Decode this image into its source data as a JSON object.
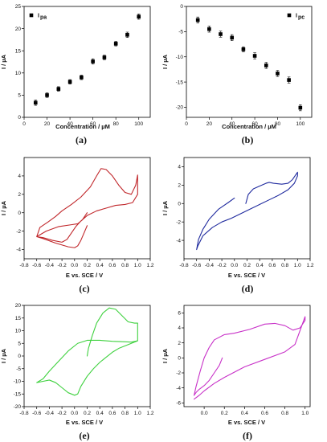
{
  "chart_data": [
    {
      "type": "scatter",
      "panel_label": "(a)",
      "xlabel": "Concentration / µM",
      "ylabel": "I / µA",
      "xlim": [
        0,
        110
      ],
      "ylim": [
        0,
        25
      ],
      "xticks": [
        "0",
        "20",
        "40",
        "60",
        "80",
        "100"
      ],
      "yticks": [
        "0",
        "5",
        "10",
        "15",
        "20",
        "25"
      ],
      "legend": {
        "label": "I",
        "subscript": "pa",
        "position": "top-left"
      },
      "color": "#000000",
      "x": [
        10,
        20,
        30,
        40,
        50,
        60,
        70,
        80,
        90,
        100
      ],
      "y": [
        3.3,
        5.0,
        6.4,
        8.0,
        9.0,
        12.6,
        13.5,
        16.6,
        18.6,
        22.7
      ],
      "err": [
        0.6,
        0.5,
        0.5,
        0.5,
        0.5,
        0.6,
        0.5,
        0.5,
        0.6,
        0.6
      ]
    },
    {
      "type": "scatter",
      "panel_label": "(b)",
      "xlabel": "Concentration / µM",
      "ylabel": "I / µA",
      "xlim": [
        0,
        110
      ],
      "ylim": [
        -22,
        0
      ],
      "xticks": [
        "0",
        "20",
        "40",
        "60",
        "80",
        "100"
      ],
      "yticks": [
        "0",
        "-5",
        "-10",
        "-15",
        "-20"
      ],
      "legend": {
        "label": "I",
        "subscript": "pc",
        "position": "top-right"
      },
      "color": "#000000",
      "x": [
        10,
        20,
        30,
        40,
        50,
        60,
        70,
        80,
        90,
        100
      ],
      "y": [
        -2.7,
        -4.5,
        -5.5,
        -6.2,
        -8.5,
        -9.8,
        -11.7,
        -13.3,
        -14.6,
        -20.1
      ],
      "err": [
        0.6,
        0.6,
        0.6,
        0.6,
        0.5,
        0.6,
        0.6,
        0.6,
        0.6,
        0.6
      ]
    },
    {
      "type": "line",
      "panel_label": "(c)",
      "xlabel": "E vs. SCE / V",
      "ylabel": "I / µA",
      "xlim": [
        -0.8,
        1.2
      ],
      "ylim": [
        -5,
        6
      ],
      "xticks": [
        "-0.8",
        "-0.6",
        "-0.4",
        "-0.2",
        "0.0",
        "0.2",
        "0.4",
        "0.6",
        "0.8",
        "1.0",
        "1.2"
      ],
      "yticks": [
        "-4",
        "-2",
        "0",
        "2",
        "4"
      ],
      "color": "#c0262a",
      "x": [
        0.2,
        0.12,
        0.05,
        -0.05,
        -0.25,
        -0.45,
        -0.6,
        -0.55,
        -0.42,
        -0.3,
        -0.2,
        -0.05,
        0.1,
        0.25,
        0.35,
        0.42,
        0.5,
        0.6,
        0.7,
        0.8,
        0.9,
        0.97,
        1.0,
        1.0,
        0.92,
        0.8,
        0.65,
        0.5,
        0.35,
        0.2,
        0.1,
        0.02,
        -0.05,
        -0.12,
        -0.2,
        -0.35,
        -0.5,
        -0.6,
        -0.5,
        -0.3,
        -0.1,
        0.0,
        0.05,
        0.1,
        0.15,
        0.2
      ],
      "y": [
        0.0,
        -0.8,
        -1.2,
        -1.3,
        -1.5,
        -2.0,
        -2.6,
        -1.6,
        -1.0,
        -0.4,
        0.2,
        0.9,
        1.7,
        2.8,
        4.0,
        4.8,
        4.7,
        4.0,
        3.0,
        2.2,
        2.0,
        3.0,
        4.1,
        2.0,
        1.1,
        0.9,
        0.8,
        0.5,
        0.2,
        -0.3,
        -0.9,
        -1.5,
        -2.2,
        -2.9,
        -3.2,
        -3.0,
        -2.7,
        -2.6,
        -2.8,
        -3.3,
        -3.7,
        -3.8,
        -3.6,
        -3.0,
        -2.2,
        -1.4
      ]
    },
    {
      "type": "line",
      "panel_label": "(d)",
      "xlabel": "E vs. SCE / V",
      "ylabel": "I / µA",
      "xlim": [
        -0.8,
        1.2
      ],
      "ylim": [
        -6,
        5
      ],
      "xticks": [
        "-0.8",
        "-0.6",
        "-0.4",
        "-0.2",
        "0.0",
        "0.2",
        "0.4",
        "0.6",
        "0.8",
        "1.0",
        "1.2"
      ],
      "yticks": [
        "-4",
        "-2",
        "0",
        "2",
        "4"
      ],
      "color": "#1f2a9e",
      "x": [
        0.0,
        -0.1,
        -0.25,
        -0.4,
        -0.5,
        -0.57,
        -0.6,
        -0.58,
        -0.5,
        -0.35,
        -0.2,
        -0.05,
        0.1,
        0.25,
        0.4,
        0.55,
        0.7,
        0.85,
        0.95,
        1.0,
        1.0,
        0.92,
        0.85,
        0.75,
        0.62,
        0.55,
        0.5,
        0.4,
        0.3,
        0.22,
        0.18
      ],
      "y": [
        0.6,
        0.1,
        -0.6,
        -1.7,
        -2.8,
        -3.9,
        -5.0,
        -4.6,
        -3.5,
        -2.6,
        -2.0,
        -1.6,
        -1.1,
        -0.6,
        -0.1,
        0.4,
        0.9,
        1.5,
        2.2,
        3.0,
        3.4,
        2.6,
        2.2,
        2.1,
        2.2,
        2.3,
        2.2,
        1.9,
        1.6,
        1.0,
        0.0
      ]
    },
    {
      "type": "line",
      "panel_label": "(e)",
      "xlabel": "E vs. SCE / V",
      "ylabel": "I / µA",
      "xlim": [
        -0.8,
        1.2
      ],
      "ylim": [
        -20,
        20
      ],
      "xticks": [
        "-0.8",
        "-0.6",
        "-0.4",
        "-0.2",
        "0.0",
        "0.2",
        "0.4",
        "0.6",
        "0.8",
        "1.0",
        "1.2"
      ],
      "yticks": [
        "-20",
        "-15",
        "-10",
        "-5",
        "0",
        "5",
        "10",
        "15",
        "20"
      ],
      "color": "#3fd13f",
      "x": [
        0.2,
        0.22,
        0.28,
        0.35,
        0.45,
        0.55,
        0.65,
        0.75,
        0.85,
        0.95,
        1.0,
        1.0,
        0.9,
        0.8,
        0.6,
        0.4,
        0.2,
        0.05,
        -0.1,
        -0.25,
        -0.4,
        -0.5,
        -0.6,
        -0.5,
        -0.4,
        -0.3,
        -0.2,
        -0.1,
        0.0,
        0.05,
        0.1,
        0.2,
        0.3,
        0.4,
        0.5,
        0.6,
        0.7,
        0.8,
        0.9,
        1.0
      ],
      "y": [
        0.0,
        3.0,
        8.0,
        13.0,
        17.0,
        19.0,
        18.5,
        16.0,
        13.5,
        13.0,
        13.0,
        6.0,
        5.5,
        5.6,
        5.8,
        6.2,
        6.2,
        5.0,
        2.0,
        -2.0,
        -6.0,
        -9.0,
        -10.5,
        -10.0,
        -9.5,
        -10.5,
        -12.5,
        -14.5,
        -15.5,
        -15.0,
        -12.0,
        -8.0,
        -5.0,
        -2.5,
        -0.5,
        1.5,
        3.0,
        4.0,
        5.0,
        6.0
      ]
    },
    {
      "type": "line",
      "panel_label": "(f)",
      "xlabel": "E vs. SCE / V",
      "ylabel": "I / µA",
      "xlim": [
        -0.2,
        1.05
      ],
      "ylim": [
        -6.5,
        7
      ],
      "xticks": [
        "0.0",
        "0.2",
        "0.4",
        "0.6",
        "0.8",
        "1.0"
      ],
      "yticks": [
        "-6",
        "-4",
        "-2",
        "0",
        "2",
        "4",
        "6"
      ],
      "color": "#c832c8",
      "x": [
        0.18,
        0.15,
        0.1,
        0.05,
        0.0,
        -0.05,
        -0.08,
        -0.1,
        -0.08,
        -0.04,
        0.0,
        0.05,
        0.1,
        0.2,
        0.3,
        0.45,
        0.6,
        0.7,
        0.8,
        0.88,
        0.95,
        1.0,
        1.0,
        0.9,
        0.8,
        0.6,
        0.4,
        0.2,
        0.1,
        0.0,
        -0.05,
        -0.1
      ],
      "y": [
        0.0,
        -1.0,
        -2.0,
        -3.0,
        -3.7,
        -4.2,
        -4.6,
        -5.0,
        -3.8,
        -1.8,
        0.0,
        1.4,
        2.4,
        3.1,
        3.3,
        3.8,
        4.5,
        4.6,
        4.3,
        3.7,
        4.0,
        5.0,
        5.5,
        1.8,
        0.8,
        -0.2,
        -1.2,
        -2.6,
        -3.4,
        -4.4,
        -5.0,
        -5.5
      ]
    }
  ]
}
